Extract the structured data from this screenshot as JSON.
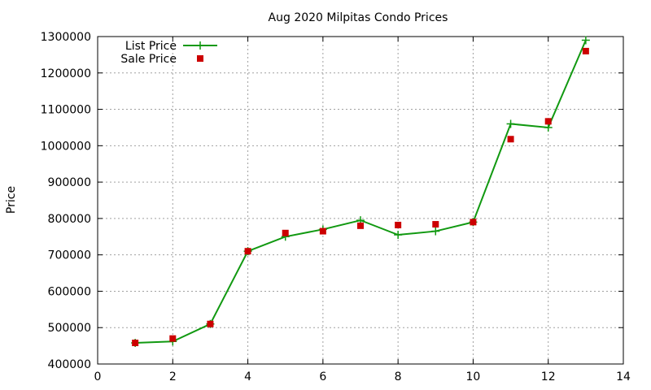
{
  "chart_data": {
    "type": "line",
    "title": "Aug 2020 Milpitas Condo Prices",
    "xlabel": "",
    "ylabel": "Price",
    "xlim": [
      0,
      14
    ],
    "ylim": [
      400000,
      1300000
    ],
    "xticks": [
      0,
      2,
      4,
      6,
      8,
      10,
      12,
      14
    ],
    "yticks": [
      400000,
      500000,
      600000,
      700000,
      800000,
      900000,
      1000000,
      1100000,
      1200000,
      1300000
    ],
    "grid": true,
    "legend_position": "top-left",
    "series": [
      {
        "name": "List Price",
        "style": "line+cross",
        "color": "#119911",
        "x": [
          1,
          2,
          3,
          4,
          5,
          6,
          7,
          8,
          9,
          10,
          11,
          12,
          13
        ],
        "y": [
          458000,
          462000,
          510000,
          710000,
          750000,
          770000,
          795000,
          755000,
          765000,
          790000,
          1060000,
          1050000,
          1290000
        ]
      },
      {
        "name": "Sale Price",
        "style": "square-points",
        "color": "#cc0000",
        "x": [
          1,
          2,
          3,
          4,
          5,
          6,
          7,
          8,
          9,
          10,
          11,
          12,
          13
        ],
        "y": [
          458000,
          470000,
          510000,
          710000,
          760000,
          765000,
          780000,
          782000,
          784000,
          790000,
          1018000,
          1067000,
          1260000
        ]
      }
    ]
  }
}
